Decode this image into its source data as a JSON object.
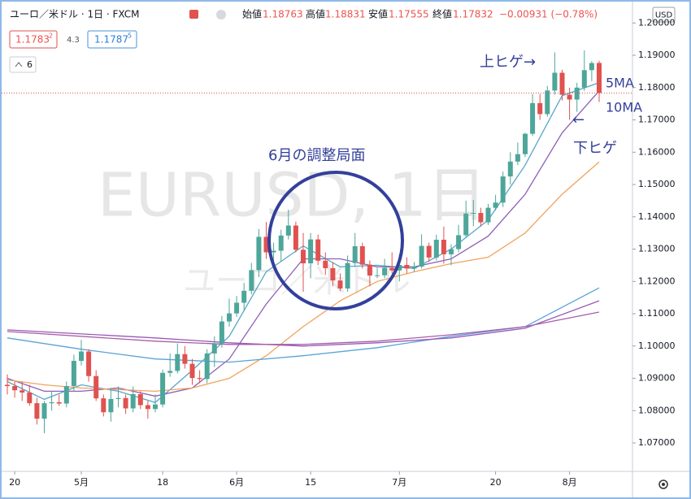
{
  "header": {
    "symbol": "ユーロ／米ドル · 1日 · FXCM",
    "open_label": "始値",
    "open": "1.18763",
    "high_label": "高値",
    "high": "1.18831",
    "low_label": "安値",
    "low": "1.17555",
    "close_label": "終値",
    "close": "1.17832",
    "change": "−0.00931 (−0.78%)"
  },
  "price_boxes": {
    "bid": "1.1783",
    "bid_sup": "2",
    "spread": "4.3",
    "ask": "1.1787",
    "ask_sup": "5"
  },
  "indicators_count": "6",
  "currency": "USD",
  "watermark": {
    "symbol": "EURUSD, 1日",
    "name": "ユーロ／米ドル"
  },
  "annotations": {
    "adjustment": "6月の調整局面",
    "upper_wick": "上ヒゲ→",
    "ma5": "5MA",
    "ma10": "10MA",
    "arrow": "←",
    "lower_wick": "下ヒゲ"
  },
  "chart_data": {
    "type": "candlestick",
    "categories": [
      null,
      "20",
      null,
      null,
      null,
      null,
      null,
      null,
      null,
      null,
      "5月",
      null,
      null,
      null,
      null,
      null,
      null,
      null,
      null,
      null,
      null,
      "18",
      null,
      null,
      null,
      null,
      null,
      null,
      null,
      null,
      null,
      "6月",
      null,
      null,
      null,
      null,
      null,
      null,
      null,
      null,
      null,
      "15",
      null,
      null,
      null,
      null,
      null,
      null,
      null,
      null,
      null,
      null,
      null,
      "7月",
      null,
      null,
      null,
      null,
      null,
      null,
      null,
      null,
      null,
      null,
      null,
      null,
      "20",
      null,
      null,
      null,
      null,
      null,
      null,
      null,
      null,
      null,
      "8月",
      null,
      null,
      null,
      null
    ],
    "open": [
      1.088,
      1.0876,
      1.0863,
      1.0856,
      1.0823,
      1.0775,
      1.0823,
      1.0826,
      1.0822,
      1.0876,
      1.0954,
      1.0983,
      1.0907,
      1.0838,
      1.0795,
      1.0836,
      1.0839,
      1.0807,
      1.0851,
      1.0817,
      1.0805,
      1.0819,
      1.0917,
      1.0923,
      1.0975,
      1.0945,
      1.0901,
      1.0898,
      1.0977,
      1.1008,
      1.1076,
      1.1101,
      1.1134,
      1.1171,
      1.1235,
      1.1338,
      1.129,
      1.1295,
      1.1342,
      1.1373,
      1.1298,
      1.1256,
      1.133,
      1.1264,
      1.1241,
      1.1203,
      1.1178,
      1.1257,
      1.1309,
      1.1252,
      1.1218,
      1.1219,
      1.1242,
      1.1234,
      1.1251,
      1.124,
      1.1246,
      1.131,
      1.1274,
      1.1329,
      1.1284,
      1.13,
      1.1343,
      1.141,
      1.1412,
      1.1383,
      1.1428,
      1.1444,
      1.1525,
      1.1571,
      1.1594,
      1.1657,
      1.1752,
      1.1718,
      1.1791,
      1.1846,
      1.1778,
      1.1763,
      1.18,
      1.1854,
      1.18763
    ],
    "high": [
      1.0912,
      1.089,
      1.089,
      1.088,
      1.084,
      1.083,
      1.086,
      1.085,
      1.089,
      1.0973,
      1.1019,
      1.099,
      1.0925,
      1.085,
      1.087,
      1.0875,
      1.085,
      1.0875,
      1.086,
      1.083,
      1.085,
      1.0927,
      1.0977,
      1.1008,
      1.1,
      1.096,
      1.0925,
      1.099,
      1.103,
      1.1093,
      1.1147,
      1.1155,
      1.1195,
      1.1257,
      1.1362,
      1.1384,
      1.132,
      1.136,
      1.1422,
      1.1385,
      1.135,
      1.135,
      1.1345,
      1.129,
      1.126,
      1.1225,
      1.128,
      1.135,
      1.132,
      1.1265,
      1.1242,
      1.127,
      1.129,
      1.1285,
      1.1275,
      1.126,
      1.1346,
      1.132,
      1.1345,
      1.137,
      1.1315,
      1.1375,
      1.145,
      1.1452,
      1.1428,
      1.144,
      1.1468,
      1.154,
      1.16,
      1.163,
      1.166,
      1.178,
      1.178,
      1.1805,
      1.1909,
      1.1855,
      1.18,
      1.1815,
      1.1915,
      1.1882,
      1.18831
    ],
    "low": [
      1.085,
      1.084,
      1.083,
      1.0815,
      1.0757,
      1.073,
      1.08,
      1.0815,
      1.081,
      1.086,
      1.094,
      1.089,
      1.083,
      1.0782,
      1.0766,
      1.081,
      1.079,
      1.0795,
      1.0805,
      1.0775,
      1.0795,
      1.081,
      1.0905,
      1.0915,
      1.093,
      1.088,
      1.0885,
      1.0885,
      1.0935,
      1.0995,
      1.106,
      1.109,
      1.111,
      1.116,
      1.1213,
      1.127,
      1.1245,
      1.126,
      1.133,
      1.129,
      1.1168,
      1.121,
      1.125,
      1.122,
      1.1185,
      1.117,
      1.1168,
      1.1245,
      1.124,
      1.1185,
      1.121,
      1.121,
      1.1225,
      1.12,
      1.1225,
      1.123,
      1.124,
      1.126,
      1.1265,
      1.1255,
      1.125,
      1.129,
      1.1335,
      1.1371,
      1.137,
      1.1375,
      1.142,
      1.143,
      1.15,
      1.156,
      1.1585,
      1.165,
      1.17,
      1.171,
      1.1778,
      1.176,
      1.17,
      1.1725,
      1.179,
      1.182,
      1.17555
    ],
    "close": [
      1.0876,
      1.0863,
      1.0856,
      1.0823,
      1.0775,
      1.0823,
      1.0826,
      1.0822,
      1.0876,
      1.0954,
      1.0983,
      1.0907,
      1.0838,
      1.0795,
      1.0836,
      1.0839,
      1.0807,
      1.0851,
      1.0817,
      1.0805,
      1.0819,
      1.0917,
      1.0923,
      1.0975,
      1.0945,
      1.0901,
      1.0898,
      1.0977,
      1.1008,
      1.1076,
      1.1101,
      1.1134,
      1.1171,
      1.1235,
      1.1338,
      1.129,
      1.1295,
      1.1342,
      1.1373,
      1.1298,
      1.1256,
      1.133,
      1.1264,
      1.1241,
      1.1203,
      1.1178,
      1.1257,
      1.1309,
      1.1252,
      1.1218,
      1.1219,
      1.1242,
      1.1234,
      1.1251,
      1.124,
      1.1246,
      1.131,
      1.1274,
      1.1329,
      1.1284,
      1.13,
      1.1343,
      1.141,
      1.1412,
      1.1383,
      1.1428,
      1.1444,
      1.1525,
      1.1571,
      1.1594,
      1.1657,
      1.1752,
      1.1718,
      1.1791,
      1.1846,
      1.1778,
      1.1763,
      1.18,
      1.1854,
      1.1876,
      1.17832
    ],
    "up_color": "#4da699",
    "down_color": "#e0524f",
    "lines": [
      {
        "color": "#58a6c8",
        "x": [
          0,
          5,
          10,
          15,
          20,
          25,
          30,
          35,
          40,
          45,
          50,
          55,
          60,
          65,
          70,
          75,
          80
        ],
        "values": [
          1.089,
          1.0835,
          1.088,
          1.086,
          1.0825,
          1.0925,
          1.103,
          1.123,
          1.131,
          1.1245,
          1.125,
          1.124,
          1.13,
          1.139,
          1.156,
          1.1775,
          1.1815
        ]
      },
      {
        "color": "#8e5fb5",
        "x": [
          0,
          5,
          10,
          15,
          20,
          25,
          30,
          35,
          40,
          45,
          50,
          55,
          60,
          65,
          70,
          75,
          80
        ],
        "values": [
          1.09,
          1.086,
          1.086,
          1.087,
          1.0845,
          1.087,
          1.096,
          1.113,
          1.127,
          1.127,
          1.1245,
          1.1245,
          1.127,
          1.134,
          1.147,
          1.166,
          1.179
        ]
      },
      {
        "color": "#f0a35e",
        "x": [
          0,
          5,
          10,
          15,
          20,
          25,
          30,
          35,
          40,
          45,
          50,
          55,
          60,
          65,
          70,
          75,
          80
        ],
        "values": [
          1.0895,
          1.088,
          1.087,
          1.0865,
          1.086,
          1.087,
          1.09,
          1.097,
          1.106,
          1.114,
          1.12,
          1.123,
          1.1255,
          1.1275,
          1.135,
          1.147,
          1.157
        ]
      },
      {
        "color": "#5ba3d8",
        "x": [
          0,
          10,
          20,
          30,
          40,
          50,
          60,
          70,
          80
        ],
        "values": [
          1.1025,
          1.099,
          1.096,
          1.095,
          1.097,
          1.0995,
          1.103,
          1.106,
          1.118
        ]
      },
      {
        "color": "#9b59b6",
        "x": [
          0,
          20,
          30,
          40,
          50,
          60,
          70,
          80
        ],
        "values": [
          1.105,
          1.1025,
          1.101,
          1.1,
          1.101,
          1.1025,
          1.1055,
          1.114
        ]
      },
      {
        "color": "#a55fa8",
        "x": [
          0,
          20,
          30,
          40,
          50,
          60,
          70,
          80
        ],
        "values": [
          1.1045,
          1.1015,
          1.1005,
          1.1005,
          1.1015,
          1.1035,
          1.106,
          1.1105
        ]
      }
    ],
    "ylim": [
      1.0612,
      1.2046
    ],
    "yticks": [
      {
        "value": 1.07,
        "label": "1.07000"
      },
      {
        "value": 1.08,
        "label": "1.08000"
      },
      {
        "value": 1.09,
        "label": "1.09000"
      },
      {
        "value": 1.1,
        "label": "1.10000"
      },
      {
        "value": 1.11,
        "label": "1.11000"
      },
      {
        "value": 1.12,
        "label": "1.12000"
      },
      {
        "value": 1.13,
        "label": "1.13000"
      },
      {
        "value": 1.14,
        "label": "1.14000"
      },
      {
        "value": 1.15,
        "label": "1.15000"
      },
      {
        "value": 1.16,
        "label": "1.16000"
      },
      {
        "value": 1.17,
        "label": "1.17000"
      },
      {
        "value": 1.18,
        "label": "1.18000"
      },
      {
        "value": 1.19,
        "label": "1.19000"
      },
      {
        "value": 1.2,
        "label": "1.20000"
      }
    ]
  }
}
